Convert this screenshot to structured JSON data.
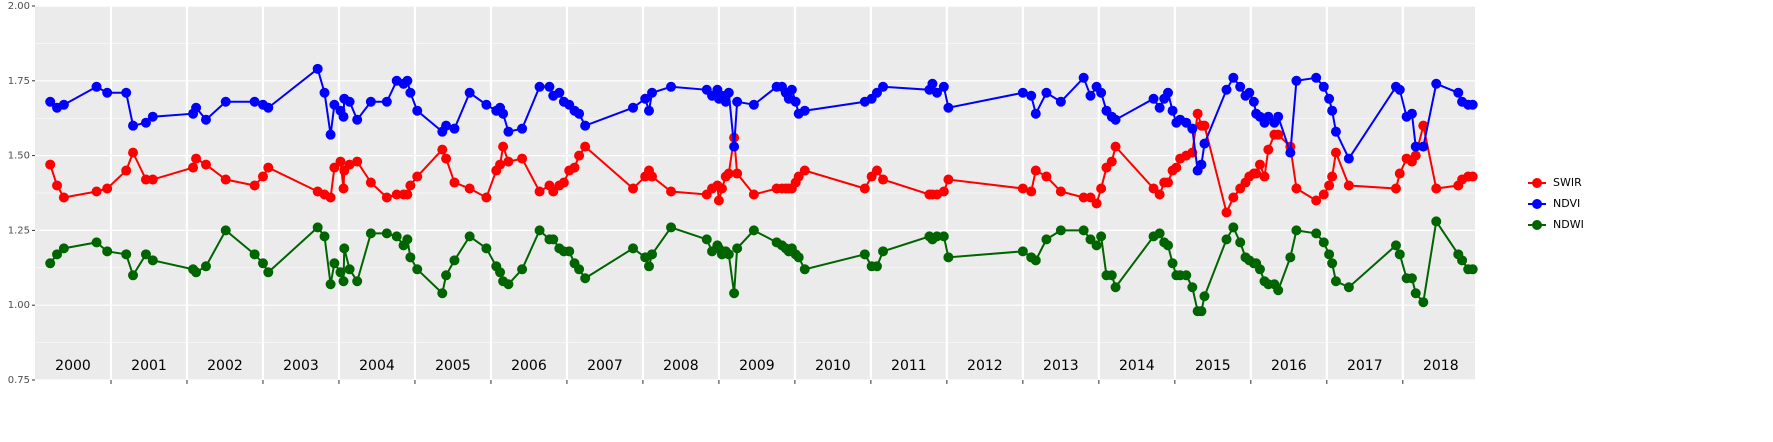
{
  "chart_data": {
    "type": "line",
    "x": [
      2000.2,
      2000.29,
      2000.38,
      2000.81,
      2000.95,
      2001.2,
      2001.29,
      2001.46,
      2001.55,
      2002.08,
      2002.12,
      2002.25,
      2002.51,
      2002.89,
      2003.0,
      2003.07,
      2003.72,
      2003.81,
      2003.89,
      2003.94,
      2004.02,
      2004.06,
      2004.07,
      2004.14,
      2004.24,
      2004.42,
      2004.63,
      2004.76,
      2004.85,
      2004.9,
      2004.94,
      2005.03,
      2005.36,
      2005.41,
      2005.52,
      2005.72,
      2005.94,
      2006.07,
      2006.12,
      2006.16,
      2006.23,
      2006.41,
      2006.64,
      2006.77,
      2006.82,
      2006.9,
      2006.96,
      2007.03,
      2007.1,
      2007.16,
      2007.24,
      2007.87,
      2008.03,
      2008.08,
      2008.12,
      2008.37,
      2008.84,
      2008.91,
      2008.98,
      2009.0,
      2009.04,
      2009.09,
      2009.13,
      2009.2,
      2009.24,
      2009.46,
      2009.76,
      2009.83,
      2009.88,
      2009.92,
      2009.96,
      2010.01,
      2010.05,
      2010.13,
      2010.92,
      2011.01,
      2011.08,
      2011.16,
      2011.77,
      2011.81,
      2011.87,
      2011.96,
      2012.02,
      2013.0,
      2013.11,
      2013.17,
      2013.31,
      2013.5,
      2013.8,
      2013.89,
      2013.97,
      2014.03,
      2014.1,
      2014.17,
      2014.22,
      2014.72,
      2014.8,
      2014.86,
      2014.91,
      2014.97,
      2015.02,
      2015.07,
      2015.15,
      2015.23,
      2015.3,
      2015.35,
      2015.39,
      2015.68,
      2015.77,
      2015.86,
      2015.93,
      2015.98,
      2016.04,
      2016.07,
      2016.12,
      2016.18,
      2016.23,
      2016.31,
      2016.36,
      2016.52,
      2016.6,
      2016.86,
      2016.96,
      2017.03,
      2017.07,
      2017.12,
      2017.29,
      2017.91,
      2017.96,
      2018.05,
      2018.12,
      2018.17,
      2018.27,
      2018.44,
      2018.73,
      2018.78,
      2018.86,
      2018.92
    ],
    "series": [
      {
        "name": "SWIR",
        "color": "#ff0000",
        "values": [
          1.47,
          1.4,
          1.36,
          1.38,
          1.39,
          1.45,
          1.51,
          1.42,
          1.42,
          1.46,
          1.49,
          1.47,
          1.42,
          1.4,
          1.43,
          1.46,
          1.38,
          1.37,
          1.36,
          1.46,
          1.48,
          1.39,
          1.45,
          1.47,
          1.48,
          1.41,
          1.36,
          1.37,
          1.37,
          1.37,
          1.4,
          1.43,
          1.52,
          1.49,
          1.41,
          1.39,
          1.36,
          1.45,
          1.47,
          1.53,
          1.48,
          1.49,
          1.38,
          1.4,
          1.38,
          1.4,
          1.41,
          1.45,
          1.46,
          1.5,
          1.53,
          1.39,
          1.43,
          1.45,
          1.43,
          1.38,
          1.37,
          1.39,
          1.4,
          1.35,
          1.39,
          1.43,
          1.44,
          1.56,
          1.44,
          1.37,
          1.39,
          1.39,
          1.39,
          1.39,
          1.39,
          1.41,
          1.43,
          1.45,
          1.39,
          1.43,
          1.45,
          1.42,
          1.37,
          1.37,
          1.37,
          1.38,
          1.42,
          1.39,
          1.38,
          1.45,
          1.43,
          1.38,
          1.36,
          1.36,
          1.34,
          1.39,
          1.46,
          1.48,
          1.53,
          1.39,
          1.37,
          1.41,
          1.41,
          1.45,
          1.46,
          1.49,
          1.5,
          1.51,
          1.64,
          1.6,
          1.6,
          1.31,
          1.36,
          1.39,
          1.41,
          1.43,
          1.44,
          1.44,
          1.47,
          1.43,
          1.52,
          1.57,
          1.57,
          1.53,
          1.39,
          1.35,
          1.37,
          1.4,
          1.43,
          1.51,
          1.4,
          1.39,
          1.44,
          1.49,
          1.48,
          1.5,
          1.6,
          1.39,
          1.4,
          1.42,
          1.43,
          1.43
        ]
      },
      {
        "name": "NDVI",
        "color": "#0000ff",
        "values": [
          1.68,
          1.66,
          1.67,
          1.73,
          1.71,
          1.71,
          1.6,
          1.61,
          1.63,
          1.64,
          1.66,
          1.62,
          1.68,
          1.68,
          1.67,
          1.66,
          1.79,
          1.71,
          1.57,
          1.67,
          1.65,
          1.63,
          1.69,
          1.68,
          1.62,
          1.68,
          1.68,
          1.75,
          1.74,
          1.75,
          1.71,
          1.65,
          1.58,
          1.6,
          1.59,
          1.71,
          1.67,
          1.65,
          1.66,
          1.64,
          1.58,
          1.59,
          1.73,
          1.73,
          1.7,
          1.71,
          1.68,
          1.67,
          1.65,
          1.64,
          1.6,
          1.66,
          1.69,
          1.65,
          1.71,
          1.73,
          1.72,
          1.7,
          1.72,
          1.69,
          1.7,
          1.68,
          1.71,
          1.53,
          1.68,
          1.67,
          1.73,
          1.73,
          1.71,
          1.69,
          1.72,
          1.68,
          1.64,
          1.65,
          1.68,
          1.69,
          1.71,
          1.73,
          1.72,
          1.74,
          1.71,
          1.73,
          1.66,
          1.71,
          1.7,
          1.64,
          1.71,
          1.68,
          1.76,
          1.7,
          1.73,
          1.71,
          1.65,
          1.63,
          1.62,
          1.69,
          1.66,
          1.69,
          1.71,
          1.65,
          1.61,
          1.62,
          1.61,
          1.59,
          1.45,
          1.47,
          1.54,
          1.72,
          1.76,
          1.73,
          1.7,
          1.71,
          1.68,
          1.64,
          1.63,
          1.61,
          1.63,
          1.61,
          1.63,
          1.51,
          1.75,
          1.76,
          1.73,
          1.69,
          1.65,
          1.58,
          1.49,
          1.73,
          1.72,
          1.63,
          1.64,
          1.53,
          1.53,
          1.74,
          1.71,
          1.68,
          1.67,
          1.67
        ]
      },
      {
        "name": "NDWI",
        "color": "#006400",
        "values": [
          1.14,
          1.17,
          1.19,
          1.21,
          1.18,
          1.17,
          1.1,
          1.17,
          1.15,
          1.12,
          1.11,
          1.13,
          1.25,
          1.17,
          1.14,
          1.11,
          1.26,
          1.23,
          1.07,
          1.14,
          1.11,
          1.08,
          1.19,
          1.12,
          1.08,
          1.24,
          1.24,
          1.23,
          1.2,
          1.22,
          1.16,
          1.12,
          1.04,
          1.1,
          1.15,
          1.23,
          1.19,
          1.13,
          1.11,
          1.08,
          1.07,
          1.12,
          1.25,
          1.22,
          1.22,
          1.19,
          1.18,
          1.18,
          1.14,
          1.12,
          1.09,
          1.19,
          1.16,
          1.13,
          1.17,
          1.26,
          1.22,
          1.18,
          1.2,
          1.19,
          1.17,
          1.18,
          1.17,
          1.04,
          1.19,
          1.25,
          1.21,
          1.2,
          1.19,
          1.18,
          1.19,
          1.17,
          1.16,
          1.12,
          1.17,
          1.13,
          1.13,
          1.18,
          1.23,
          1.22,
          1.23,
          1.23,
          1.16,
          1.18,
          1.16,
          1.15,
          1.22,
          1.25,
          1.25,
          1.22,
          1.2,
          1.23,
          1.1,
          1.1,
          1.06,
          1.23,
          1.24,
          1.21,
          1.2,
          1.14,
          1.1,
          1.1,
          1.1,
          1.06,
          0.98,
          0.98,
          1.03,
          1.22,
          1.26,
          1.21,
          1.16,
          1.15,
          1.14,
          1.14,
          1.12,
          1.08,
          1.07,
          1.07,
          1.05,
          1.16,
          1.25,
          1.24,
          1.21,
          1.17,
          1.14,
          1.08,
          1.06,
          1.2,
          1.17,
          1.09,
          1.09,
          1.04,
          1.01,
          1.28,
          1.17,
          1.15,
          1.12,
          1.12
        ]
      }
    ],
    "xlim": [
      2000,
      2018.95
    ],
    "xticks": [
      2001,
      2002,
      2003,
      2004,
      2005,
      2006,
      2007,
      2008,
      2009,
      2010,
      2011,
      2012,
      2013,
      2014,
      2015,
      2016,
      2017,
      2018
    ],
    "year_labels": [
      "2000",
      "2001",
      "2002",
      "2003",
      "2004",
      "2005",
      "2006",
      "2007",
      "2008",
      "2009",
      "2010",
      "2011",
      "2012",
      "2013",
      "2014",
      "2015",
      "2016",
      "2017",
      "2018"
    ],
    "ylim": [
      0.75,
      2.0
    ],
    "yticks": [
      {
        "value": 0.75,
        "label": "0.75"
      },
      {
        "value": 1.0,
        "label": "1.00"
      },
      {
        "value": 1.25,
        "label": "1.25"
      },
      {
        "value": 1.5,
        "label": "1.50"
      },
      {
        "value": 1.75,
        "label": "1.75"
      },
      {
        "value": 2.0,
        "label": "2.00"
      }
    ],
    "grid": true,
    "legend": "right"
  }
}
